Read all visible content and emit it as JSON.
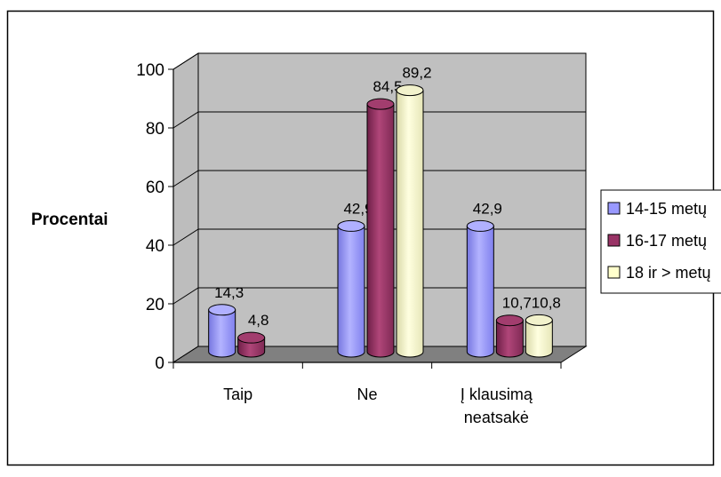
{
  "chart_data": {
    "type": "bar",
    "title": "",
    "xlabel": "",
    "ylabel": "Procentai",
    "ylim": [
      0,
      100
    ],
    "yticks": [
      0,
      20,
      40,
      60,
      80,
      100
    ],
    "grid": true,
    "legend_position": "right",
    "categories": [
      "Taip",
      "Ne",
      "Į klausimą neatsakė"
    ],
    "category_label_lines": [
      [
        "Taip"
      ],
      [
        "Ne"
      ],
      [
        "Į klausimą",
        "neatsakė"
      ]
    ],
    "series": [
      {
        "name": "14-15 metų",
        "color": "#9999FF",
        "values": [
          14.3,
          42.9,
          42.9
        ],
        "labels": [
          "14,3",
          "42,9",
          "42,9"
        ]
      },
      {
        "name": "16-17 metų",
        "color": "#993366",
        "values": [
          4.8,
          84.5,
          10.7
        ],
        "labels": [
          "4,8",
          "84,5",
          "10,7"
        ]
      },
      {
        "name": "18 ir > metų",
        "color": "#FFFFCC",
        "values": [
          null,
          89.2,
          10.8
        ],
        "labels": [
          null,
          "89,2",
          "10,8"
        ]
      }
    ]
  }
}
